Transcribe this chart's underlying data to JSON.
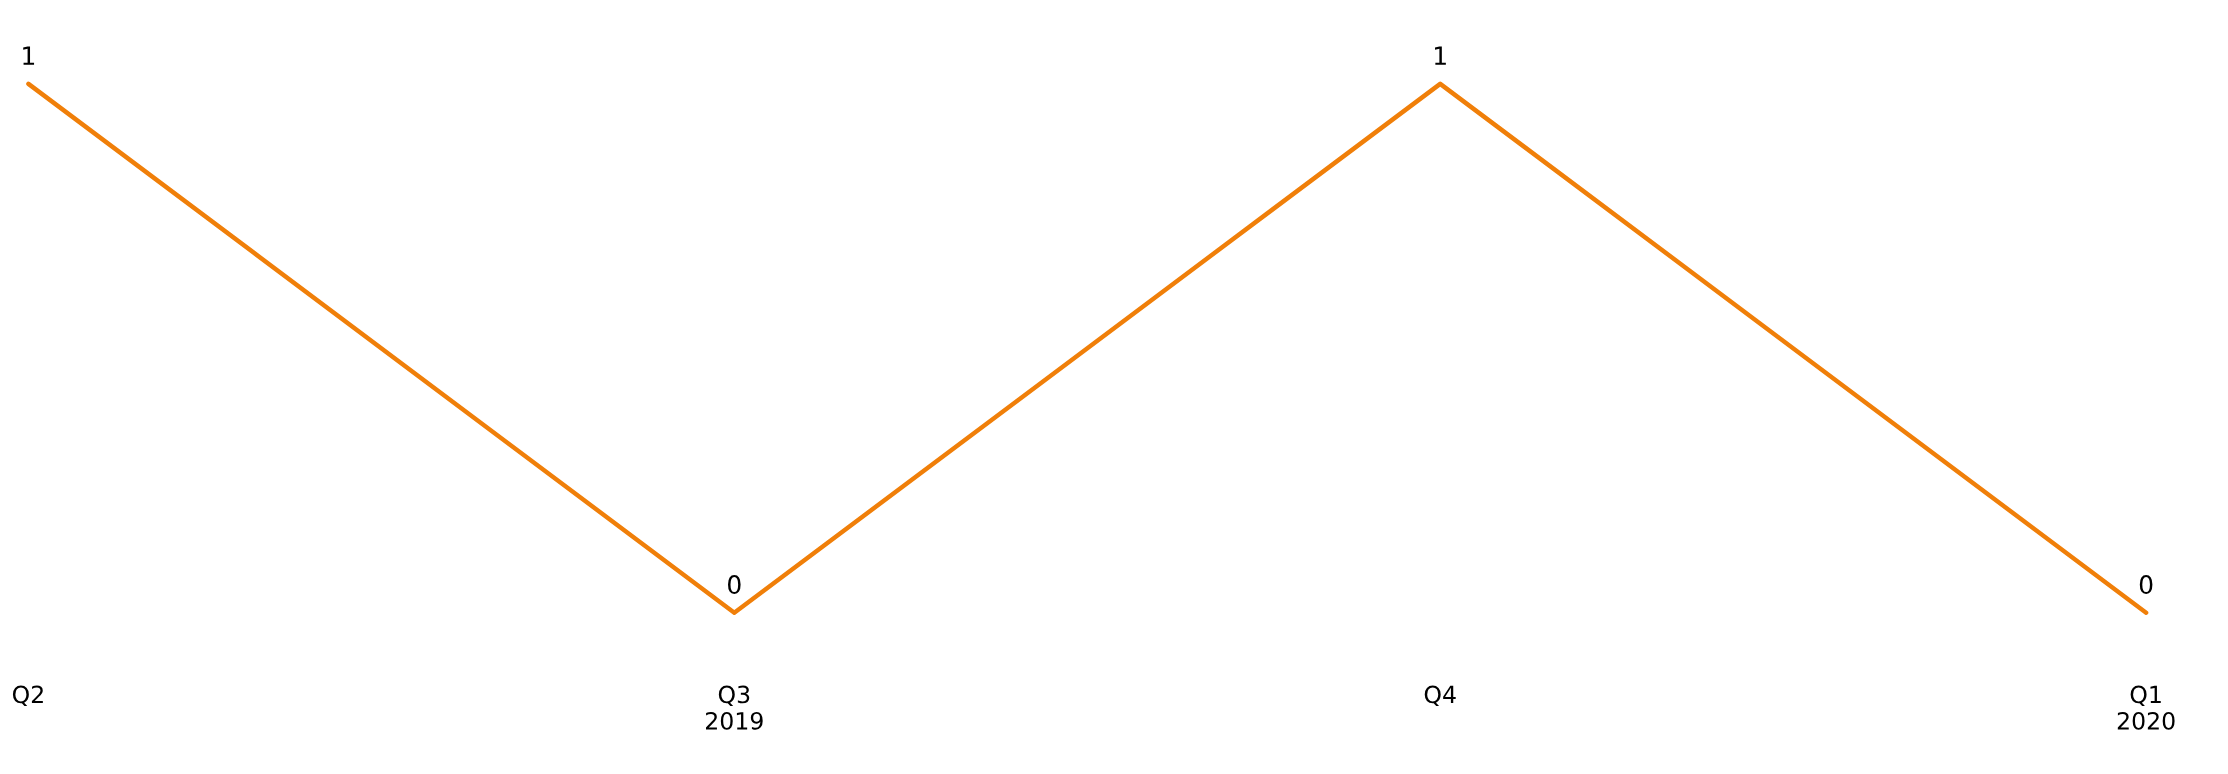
{
  "chart_data": {
    "type": "line",
    "categories": [
      "Q2",
      "Q3\n2019",
      "Q4",
      "Q1\n2020"
    ],
    "series": [
      {
        "color": "#f07f09",
        "values": [
          1,
          0,
          1,
          0
        ]
      }
    ],
    "data_labels": true,
    "grid": false,
    "legend": false,
    "marker": "none",
    "line_style": "solid",
    "tick_labels": "x"
  }
}
